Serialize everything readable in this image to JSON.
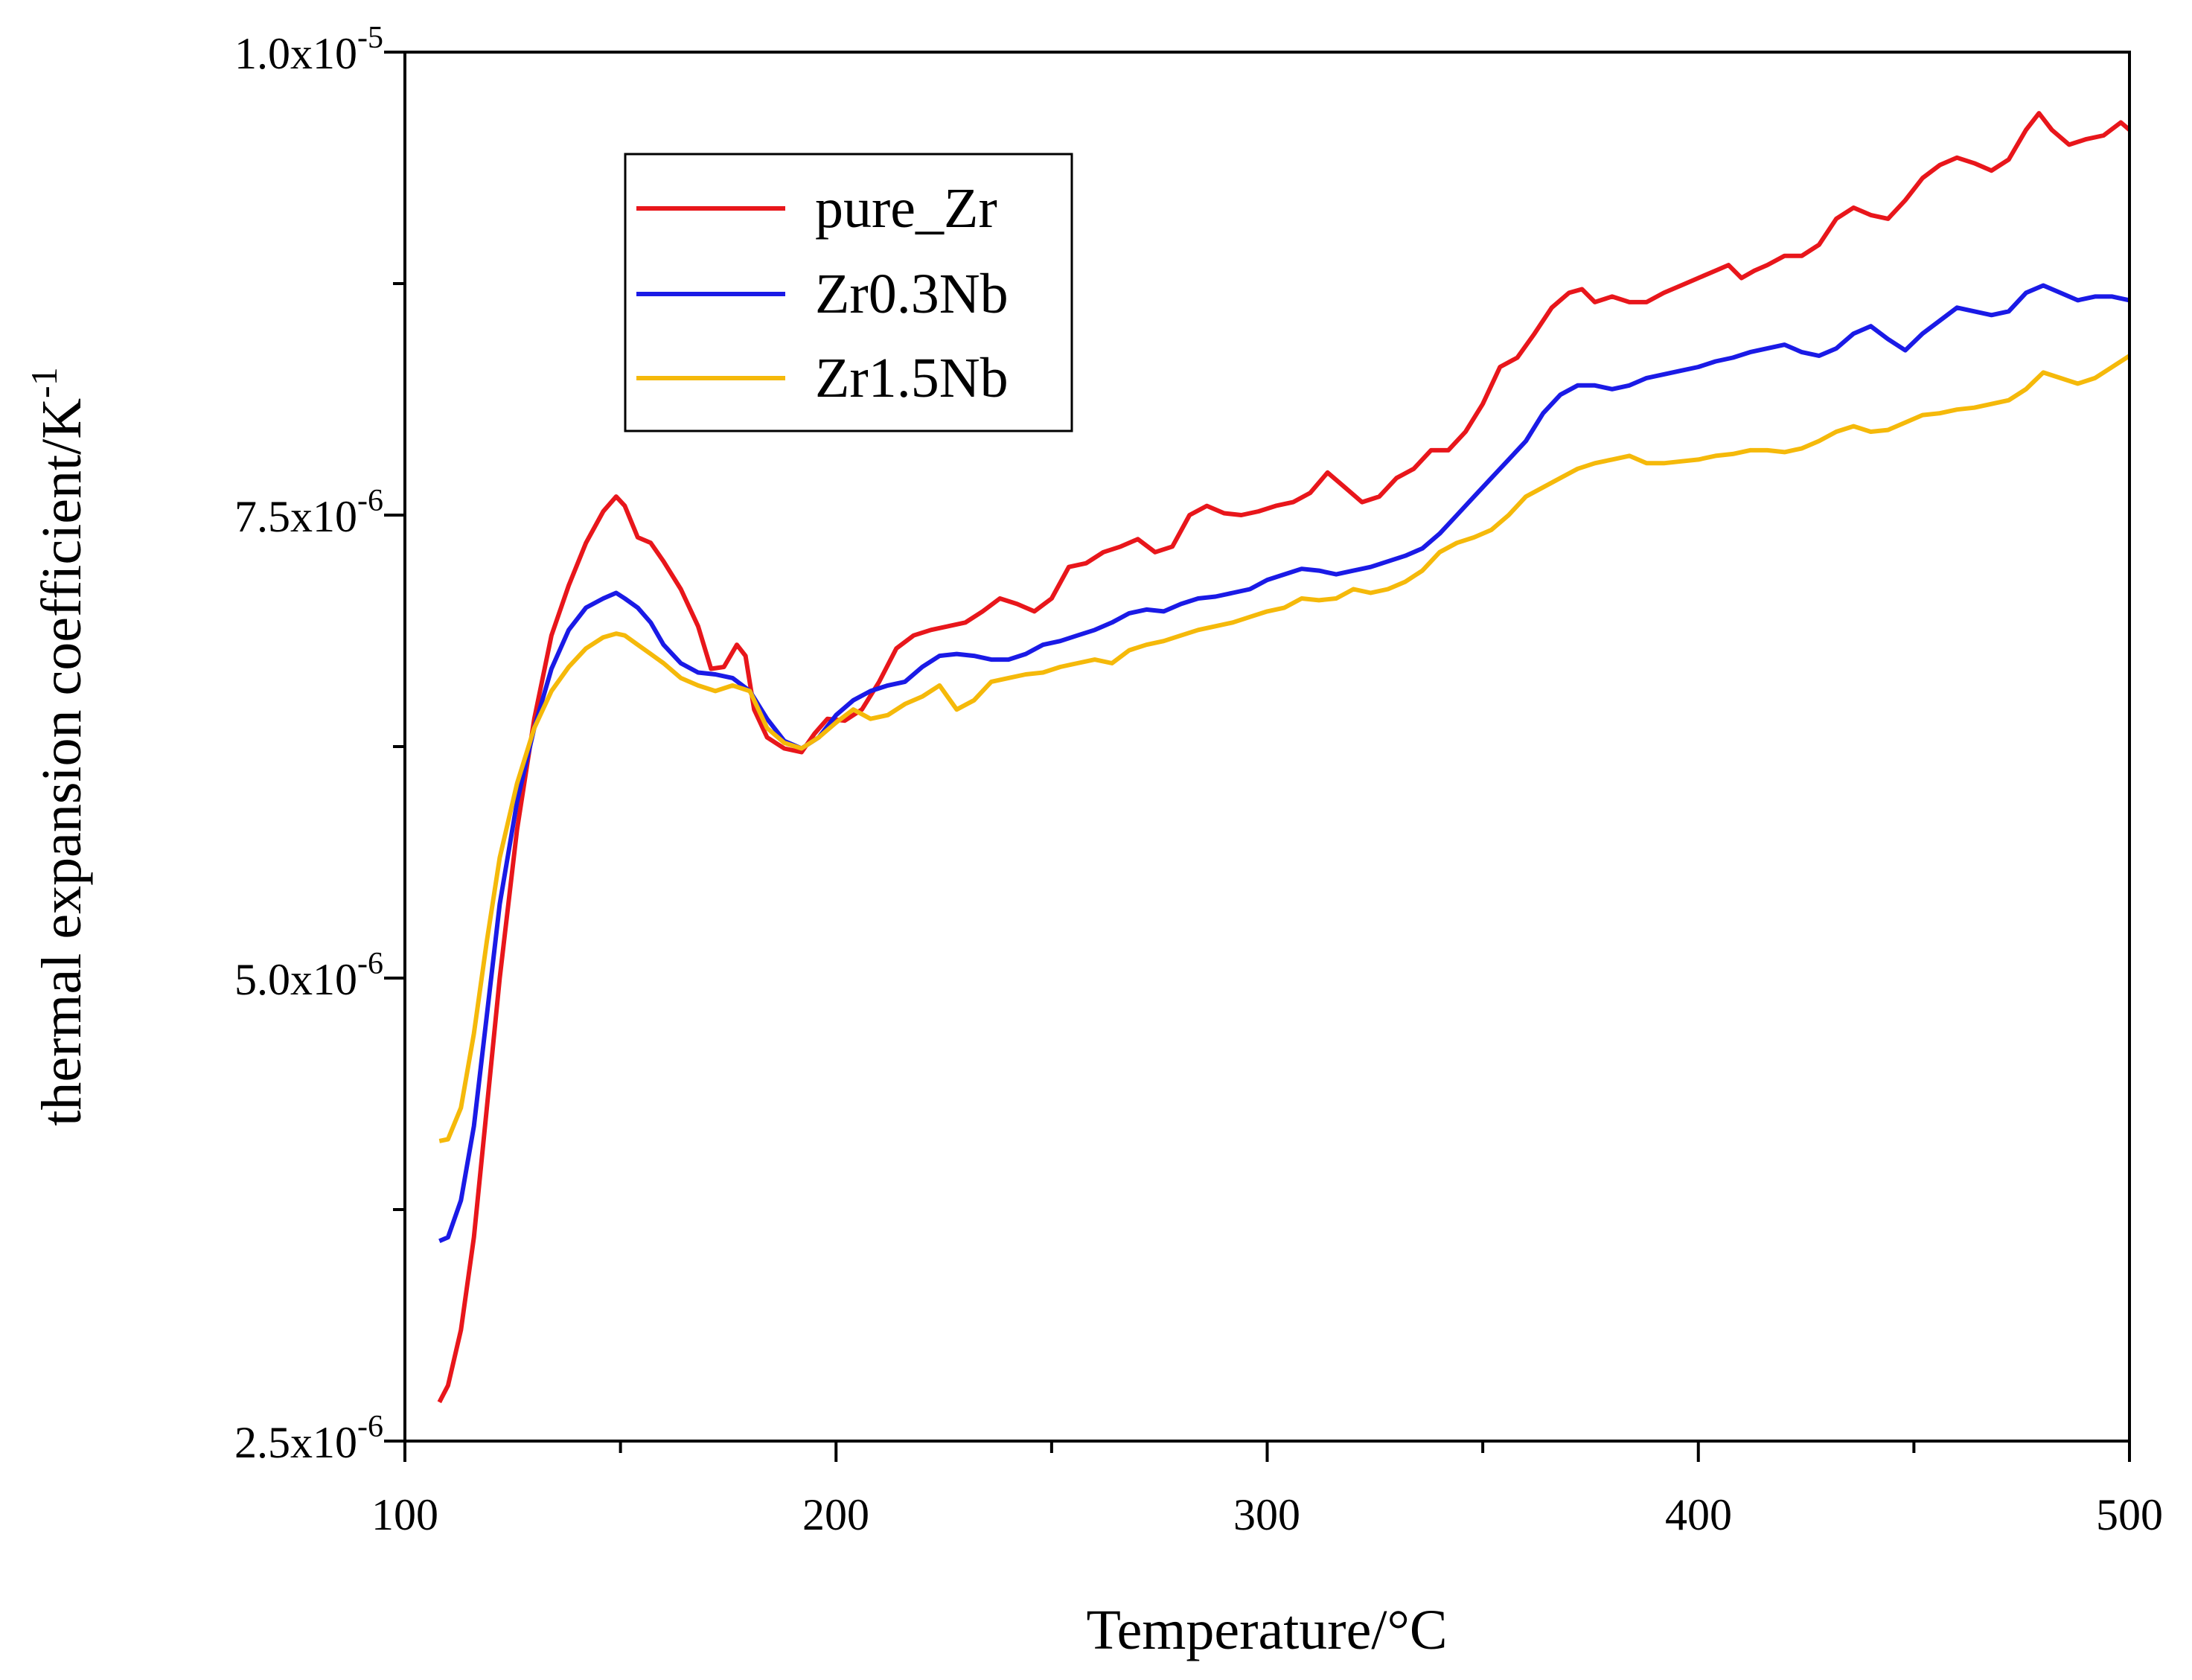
{
  "chart_data": {
    "type": "line",
    "title": "",
    "xlabel": "Temperature/°C",
    "ylabel": "thermal expansion coefficient/K",
    "ylabel_sup": "-1",
    "xlim": [
      100,
      500
    ],
    "ylim": [
      2.5e-06,
      1e-05
    ],
    "xticks": [
      {
        "value": 100,
        "label": "100"
      },
      {
        "value": 200,
        "label": "200"
      },
      {
        "value": 300,
        "label": "300"
      },
      {
        "value": 400,
        "label": "400"
      },
      {
        "value": 500,
        "label": "500"
      }
    ],
    "yticks": [
      {
        "value": 2.5e-06,
        "mant": "2.5x10",
        "exp": "-6"
      },
      {
        "value": 5e-06,
        "mant": "5.0x10",
        "exp": "-6"
      },
      {
        "value": 7.5e-06,
        "mant": "7.5x10",
        "exp": "-6"
      },
      {
        "value": 1e-05,
        "mant": "1.0x10",
        "exp": "-5"
      }
    ],
    "legend_position": "upper-left",
    "series": [
      {
        "name": "pure_Zr",
        "color": "#e8161b",
        "x": [
          108,
          110,
          113,
          116,
          119,
          122,
          126,
          130,
          134,
          138,
          142,
          146,
          149,
          151,
          154,
          157,
          160,
          164,
          168,
          171,
          174,
          177,
          179,
          181,
          184,
          188,
          192,
          195,
          198,
          202,
          206,
          210,
          214,
          218,
          222,
          226,
          230,
          234,
          238,
          242,
          246,
          250,
          254,
          258,
          262,
          266,
          270,
          274,
          278,
          282,
          286,
          290,
          294,
          298,
          302,
          306,
          310,
          314,
          318,
          322,
          326,
          330,
          334,
          338,
          342,
          346,
          350,
          354,
          358,
          362,
          366,
          370,
          373,
          376,
          380,
          384,
          388,
          392,
          396,
          400,
          404,
          407,
          410,
          413,
          416,
          420,
          424,
          428,
          432,
          436,
          440,
          444,
          448,
          452,
          456,
          460,
          464,
          468,
          472,
          476,
          479,
          482,
          486,
          490,
          494,
          498,
          500
        ],
        "y": [
          2.71e-06,
          2.8e-06,
          3.1e-06,
          3.6e-06,
          4.3e-06,
          5e-06,
          5.8e-06,
          6.4e-06,
          6.85e-06,
          7.12e-06,
          7.35e-06,
          7.52e-06,
          7.6e-06,
          7.55e-06,
          7.38e-06,
          7.35e-06,
          7.25e-06,
          7.1e-06,
          6.9e-06,
          6.67e-06,
          6.68e-06,
          6.8e-06,
          6.74e-06,
          6.45e-06,
          6.3e-06,
          6.24e-06,
          6.22e-06,
          6.32e-06,
          6.4e-06,
          6.39e-06,
          6.45e-06,
          6.6e-06,
          6.78e-06,
          6.85e-06,
          6.88e-06,
          6.9e-06,
          6.92e-06,
          6.98e-06,
          7.05e-06,
          7.02e-06,
          6.98e-06,
          7.05e-06,
          7.22e-06,
          7.24e-06,
          7.3e-06,
          7.33e-06,
          7.37e-06,
          7.3e-06,
          7.33e-06,
          7.5e-06,
          7.55e-06,
          7.51e-06,
          7.5e-06,
          7.52e-06,
          7.55e-06,
          7.57e-06,
          7.62e-06,
          7.73e-06,
          7.65e-06,
          7.57e-06,
          7.6e-06,
          7.7e-06,
          7.75e-06,
          7.85e-06,
          7.85e-06,
          7.95e-06,
          8.1e-06,
          8.3e-06,
          8.35e-06,
          8.48e-06,
          8.62e-06,
          8.7e-06,
          8.72e-06,
          8.65e-06,
          8.68e-06,
          8.65e-06,
          8.65e-06,
          8.7e-06,
          8.74e-06,
          8.78e-06,
          8.82e-06,
          8.85e-06,
          8.78e-06,
          8.82e-06,
          8.85e-06,
          8.9e-06,
          8.9e-06,
          8.96e-06,
          9.1e-06,
          9.16e-06,
          9.12e-06,
          9.1e-06,
          9.2e-06,
          9.32e-06,
          9.39e-06,
          9.43e-06,
          9.4e-06,
          9.36e-06,
          9.42e-06,
          9.58e-06,
          9.67e-06,
          9.58e-06,
          9.5e-06,
          9.53e-06,
          9.55e-06,
          9.62e-06,
          9.58e-06
        ]
      },
      {
        "name": "Zr0.3Nb",
        "color": "#1a1ae6",
        "x": [
          108,
          110,
          113,
          116,
          119,
          122,
          126,
          130,
          134,
          138,
          142,
          146,
          149,
          151,
          154,
          157,
          160,
          164,
          168,
          172,
          176,
          180,
          184,
          188,
          192,
          196,
          200,
          204,
          208,
          212,
          216,
          220,
          224,
          228,
          232,
          236,
          240,
          244,
          248,
          252,
          256,
          260,
          264,
          268,
          272,
          276,
          280,
          284,
          288,
          292,
          296,
          300,
          304,
          308,
          312,
          316,
          320,
          324,
          328,
          332,
          336,
          340,
          344,
          348,
          352,
          356,
          360,
          364,
          368,
          372,
          376,
          380,
          384,
          388,
          392,
          396,
          400,
          404,
          408,
          412,
          416,
          420,
          424,
          428,
          432,
          436,
          440,
          444,
          448,
          452,
          456,
          460,
          464,
          468,
          472,
          476,
          480,
          484,
          488,
          492,
          496,
          500
        ],
        "y": [
          3.58e-06,
          3.6e-06,
          3.8e-06,
          4.2e-06,
          4.8e-06,
          5.4e-06,
          5.95e-06,
          6.35e-06,
          6.67e-06,
          6.88e-06,
          7e-06,
          7.05e-06,
          7.08e-06,
          7.05e-06,
          7e-06,
          6.92e-06,
          6.8e-06,
          6.7e-06,
          6.65e-06,
          6.64e-06,
          6.62e-06,
          6.55e-06,
          6.4e-06,
          6.28e-06,
          6.24e-06,
          6.3e-06,
          6.42e-06,
          6.5e-06,
          6.55e-06,
          6.58e-06,
          6.6e-06,
          6.68e-06,
          6.74e-06,
          6.75e-06,
          6.74e-06,
          6.72e-06,
          6.72e-06,
          6.75e-06,
          6.8e-06,
          6.82e-06,
          6.85e-06,
          6.88e-06,
          6.92e-06,
          6.97e-06,
          6.99e-06,
          6.98e-06,
          7.02e-06,
          7.05e-06,
          7.06e-06,
          7.08e-06,
          7.1e-06,
          7.15e-06,
          7.18e-06,
          7.21e-06,
          7.2e-06,
          7.18e-06,
          7.2e-06,
          7.22e-06,
          7.25e-06,
          7.28e-06,
          7.32e-06,
          7.4e-06,
          7.5e-06,
          7.6e-06,
          7.7e-06,
          7.8e-06,
          7.9e-06,
          8.05e-06,
          8.15e-06,
          8.2e-06,
          8.2e-06,
          8.18e-06,
          8.2e-06,
          8.24e-06,
          8.26e-06,
          8.28e-06,
          8.3e-06,
          8.33e-06,
          8.35e-06,
          8.38e-06,
          8.4e-06,
          8.42e-06,
          8.38e-06,
          8.36e-06,
          8.4e-06,
          8.48e-06,
          8.52e-06,
          8.45e-06,
          8.39e-06,
          8.48e-06,
          8.55e-06,
          8.62e-06,
          8.6e-06,
          8.58e-06,
          8.6e-06,
          8.7e-06,
          8.74e-06,
          8.7e-06,
          8.66e-06,
          8.68e-06,
          8.68e-06,
          8.66e-06
        ]
      },
      {
        "name": "Zr1.5Nb",
        "color": "#f5b90a",
        "x": [
          108,
          110,
          113,
          116,
          119,
          122,
          126,
          130,
          134,
          138,
          142,
          146,
          149,
          151,
          154,
          157,
          160,
          164,
          168,
          172,
          176,
          180,
          184,
          188,
          192,
          196,
          200,
          204,
          208,
          212,
          216,
          220,
          224,
          228,
          232,
          236,
          240,
          244,
          248,
          252,
          256,
          260,
          264,
          268,
          272,
          276,
          280,
          284,
          288,
          292,
          296,
          300,
          304,
          308,
          312,
          316,
          320,
          324,
          328,
          332,
          336,
          340,
          344,
          348,
          352,
          356,
          360,
          364,
          368,
          372,
          376,
          380,
          384,
          388,
          392,
          396,
          400,
          404,
          408,
          412,
          416,
          420,
          424,
          428,
          432,
          436,
          440,
          444,
          448,
          452,
          456,
          460,
          464,
          468,
          472,
          476,
          480,
          484,
          488,
          492,
          496,
          500
        ],
        "y": [
          4.12e-06,
          4.13e-06,
          4.3e-06,
          4.7e-06,
          5.2e-06,
          5.65e-06,
          6.05e-06,
          6.35e-06,
          6.55e-06,
          6.68e-06,
          6.78e-06,
          6.84e-06,
          6.86e-06,
          6.85e-06,
          6.8e-06,
          6.75e-06,
          6.7e-06,
          6.62e-06,
          6.58e-06,
          6.55e-06,
          6.58e-06,
          6.55e-06,
          6.35e-06,
          6.27e-06,
          6.24e-06,
          6.3e-06,
          6.38e-06,
          6.45e-06,
          6.4e-06,
          6.42e-06,
          6.48e-06,
          6.52e-06,
          6.58e-06,
          6.45e-06,
          6.5e-06,
          6.6e-06,
          6.62e-06,
          6.64e-06,
          6.65e-06,
          6.68e-06,
          6.7e-06,
          6.72e-06,
          6.7e-06,
          6.77e-06,
          6.8e-06,
          6.82e-06,
          6.85e-06,
          6.88e-06,
          6.9e-06,
          6.92e-06,
          6.95e-06,
          6.98e-06,
          7e-06,
          7.05e-06,
          7.04e-06,
          7.05e-06,
          7.1e-06,
          7.08e-06,
          7.1e-06,
          7.14e-06,
          7.2e-06,
          7.3e-06,
          7.35e-06,
          7.38e-06,
          7.42e-06,
          7.5e-06,
          7.6e-06,
          7.65e-06,
          7.7e-06,
          7.75e-06,
          7.78e-06,
          7.8e-06,
          7.82e-06,
          7.78e-06,
          7.78e-06,
          7.79e-06,
          7.8e-06,
          7.82e-06,
          7.83e-06,
          7.85e-06,
          7.85e-06,
          7.84e-06,
          7.86e-06,
          7.9e-06,
          7.95e-06,
          7.98e-06,
          7.95e-06,
          7.96e-06,
          8e-06,
          8.04e-06,
          8.05e-06,
          8.07e-06,
          8.08e-06,
          8.1e-06,
          8.12e-06,
          8.18e-06,
          8.27e-06,
          8.24e-06,
          8.21e-06,
          8.24e-06,
          8.3e-06,
          8.36e-06
        ]
      }
    ]
  }
}
